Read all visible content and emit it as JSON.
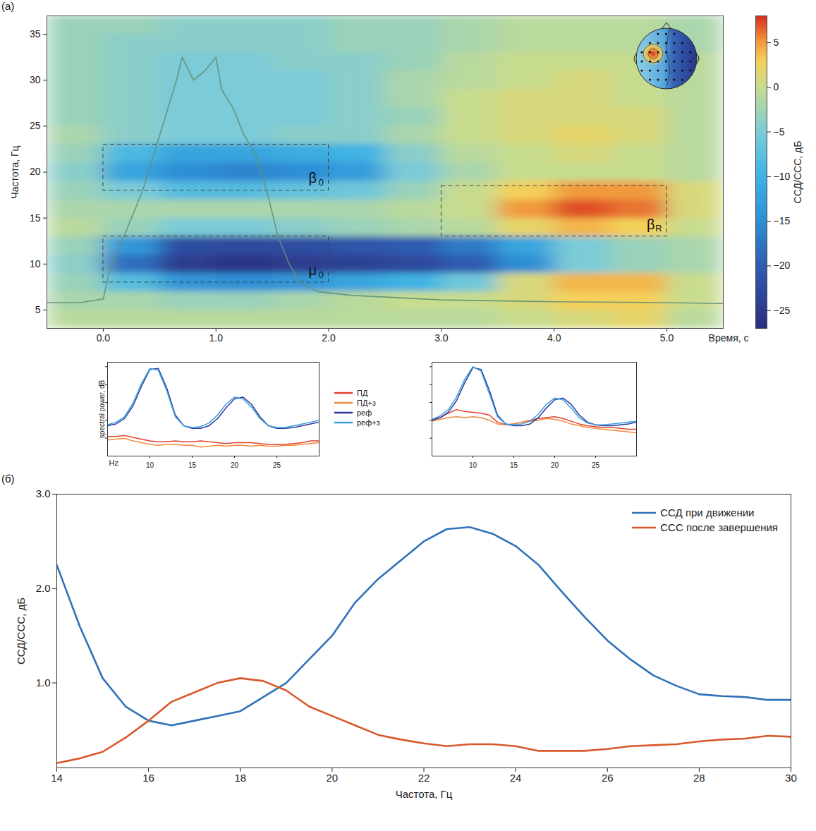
{
  "chart_data": [
    {
      "type": "heatmap",
      "panel": "(а)",
      "x_label": "Время, с",
      "y_label": "Частота, Гц",
      "xlim": [
        -0.5,
        5.5
      ],
      "xticks": [
        0,
        1,
        2,
        3,
        4,
        5
      ],
      "ylim": [
        3,
        37
      ],
      "yticks": [
        5,
        10,
        15,
        20,
        25,
        30,
        35
      ],
      "x_edges": [
        -0.5,
        0,
        0.5,
        1,
        1.5,
        2,
        2.5,
        3,
        3.5,
        4,
        4.5,
        5,
        5.5
      ],
      "y_edges": [
        3,
        5,
        7,
        9,
        11,
        13,
        15,
        17,
        19,
        21,
        23,
        25,
        27,
        29,
        31,
        33,
        35,
        37
      ],
      "cells": [
        [
          -1,
          -1,
          -1,
          -1,
          -1,
          -1,
          -1,
          -1,
          0,
          1,
          2,
          -1
        ],
        [
          -2,
          -2,
          -3,
          -3,
          -2,
          -1,
          0,
          0,
          1,
          3,
          3,
          0
        ],
        [
          -3,
          -8,
          -14,
          -15,
          -14,
          -12,
          -10,
          -6,
          1,
          4,
          4,
          0
        ],
        [
          -4,
          -18,
          -25,
          -26,
          -25,
          -24,
          -23,
          -20,
          -15,
          -5,
          -3,
          -2
        ],
        [
          -3,
          -14,
          -22,
          -23,
          -22,
          -21,
          -20,
          -17,
          -12,
          -5,
          -3,
          -2
        ],
        [
          -1,
          -3,
          -5,
          -5,
          -4,
          -3,
          -2,
          -1,
          2,
          4,
          3,
          0
        ],
        [
          -2,
          -2,
          -2,
          -2,
          -2,
          -2,
          -1,
          0,
          5,
          7,
          6,
          1
        ],
        [
          -3,
          -5,
          -8,
          -8,
          -7,
          -6,
          -3,
          0,
          3,
          5,
          5,
          1
        ],
        [
          -4,
          -12,
          -15,
          -16,
          -15,
          -13,
          -5,
          -2,
          0,
          0,
          0,
          -1
        ],
        [
          -3,
          -9,
          -12,
          -12,
          -11,
          -10,
          -4,
          -1,
          0,
          1,
          0,
          -1
        ],
        [
          -2,
          -4,
          -5,
          -5,
          -4,
          -4,
          -2,
          0,
          1,
          2,
          1,
          -1
        ],
        [
          -3,
          -4,
          -5,
          -5,
          -5,
          -4,
          -3,
          0,
          1,
          1,
          1,
          -1
        ],
        [
          -3,
          -4,
          -5,
          -5,
          -5,
          -4,
          -2,
          0,
          1,
          1,
          0,
          -1
        ],
        [
          -3,
          -4,
          -5,
          -5,
          -5,
          -4,
          -2,
          -1,
          0,
          1,
          0,
          -1
        ],
        [
          -3,
          -4,
          -5,
          -5,
          -4,
          -4,
          -3,
          -1,
          0,
          0,
          0,
          -1
        ],
        [
          -3,
          -4,
          -4,
          -4,
          -4,
          -3,
          -3,
          -2,
          -1,
          -1,
          -1,
          -2
        ],
        [
          -3,
          -3,
          -4,
          -4,
          -4,
          -3,
          -3,
          -2,
          -1,
          -1,
          -1,
          -2
        ]
      ],
      "colorbar": {
        "label": "ССД/ССС, дБ",
        "lim": [
          -27,
          8
        ],
        "ticks": [
          -25,
          -20,
          -15,
          -10,
          -5,
          0,
          5
        ]
      },
      "trace": {
        "color": "#62907a",
        "x": [
          -0.5,
          -0.2,
          0,
          0.05,
          0.15,
          0.25,
          0.35,
          0.45,
          0.55,
          0.65,
          0.7,
          0.8,
          0.9,
          1.0,
          1.05,
          1.15,
          1.25,
          1.35,
          1.45,
          1.55,
          1.65,
          1.75,
          1.9,
          2.2,
          3,
          4,
          5,
          5.5
        ],
        "y": [
          5.8,
          5.8,
          6.2,
          9,
          12,
          15,
          18,
          22,
          26,
          30,
          32.5,
          30,
          31,
          32.5,
          29,
          27,
          24,
          22,
          18,
          13,
          10,
          8,
          7,
          6.6,
          6.1,
          5.9,
          5.8,
          5.7
        ]
      },
      "annotations": [
        {
          "text": "β",
          "subscript": "0",
          "x1": 0,
          "x2": 2,
          "y1": 18,
          "y2": 23
        },
        {
          "text": "μ",
          "subscript": "0",
          "x1": 0,
          "x2": 2,
          "y1": 8,
          "y2": 13
        },
        {
          "text": "β",
          "subscript": "R",
          "x1": 3,
          "x2": 5,
          "y1": 13,
          "y2": 18.5
        }
      ]
    },
    {
      "type": "line",
      "x_label": "Hz",
      "y_label": "spectral power, dB",
      "tick_labels": "x",
      "legend": "right",
      "xlim": [
        5,
        30
      ],
      "xticks": [
        10,
        15,
        20,
        25
      ],
      "ylim": [
        0,
        10.5
      ],
      "yticks": [
        2,
        4,
        6,
        8,
        10
      ],
      "x": [
        5,
        6,
        7,
        8,
        9,
        10,
        11,
        12,
        13,
        14,
        15,
        16,
        17,
        18,
        19,
        20,
        21,
        22,
        23,
        24,
        25,
        26,
        27,
        28,
        29,
        30
      ],
      "series": [
        {
          "name": "ПД",
          "color": "#e0412b",
          "values": [
            2.2,
            2.2,
            2.3,
            2.1,
            1.9,
            1.7,
            1.6,
            1.6,
            1.7,
            1.6,
            1.6,
            1.7,
            1.6,
            1.5,
            1.4,
            1.5,
            1.5,
            1.5,
            1.4,
            1.3,
            1.3,
            1.3,
            1.4,
            1.5,
            1.7,
            1.7
          ]
        },
        {
          "name": "ПД+з",
          "color": "#f08a3c",
          "values": [
            1.8,
            1.9,
            2.0,
            1.7,
            1.5,
            1.3,
            1.2,
            1.3,
            1.3,
            1.2,
            1.2,
            1.0,
            1.1,
            1.2,
            1.1,
            1.2,
            1.2,
            1.1,
            1.2,
            1.1,
            1.1,
            1.2,
            1.2,
            1.3,
            1.4,
            1.5
          ]
        },
        {
          "name": "реф",
          "color": "#2b3a9a",
          "values": [
            3.4,
            3.6,
            4.2,
            5.6,
            7.8,
            9.7,
            9.8,
            7.6,
            4.6,
            3.4,
            3.1,
            3.1,
            3.4,
            4.2,
            5.4,
            6.4,
            6.6,
            5.8,
            4.4,
            3.4,
            3.1,
            3.1,
            3.2,
            3.4,
            3.6,
            3.8
          ]
        },
        {
          "name": "реф+з",
          "color": "#3aa0e0",
          "values": [
            3.5,
            3.8,
            4.4,
            5.9,
            8.1,
            9.8,
            9.6,
            7.3,
            4.4,
            3.4,
            3.2,
            3.3,
            3.7,
            4.6,
            5.8,
            6.6,
            6.4,
            5.5,
            4.2,
            3.4,
            3.2,
            3.2,
            3.4,
            3.6,
            3.8,
            4.0
          ]
        }
      ]
    },
    {
      "type": "line",
      "tick_labels": "x",
      "xlim": [
        5,
        30
      ],
      "xticks": [
        10,
        15,
        20,
        25
      ],
      "ylim": [
        0,
        10.5
      ],
      "yticks": [
        2,
        4,
        6,
        8,
        10
      ],
      "x": [
        5,
        6,
        7,
        8,
        9,
        10,
        11,
        12,
        13,
        14,
        15,
        16,
        17,
        18,
        19,
        20,
        21,
        22,
        23,
        24,
        25,
        26,
        27,
        28,
        29,
        30
      ],
      "series": [
        {
          "name": "ПД",
          "color": "#e0412b",
          "values": [
            4.0,
            4.3,
            4.8,
            5.2,
            5.0,
            4.9,
            4.8,
            4.6,
            3.8,
            3.5,
            3.6,
            3.8,
            4.0,
            4.2,
            4.3,
            4.4,
            4.2,
            3.9,
            3.6,
            3.4,
            3.3,
            3.2,
            3.2,
            3.1,
            3.0,
            3.0
          ]
        },
        {
          "name": "ПД+з",
          "color": "#f08a3c",
          "values": [
            3.9,
            4.1,
            4.3,
            4.4,
            4.3,
            4.4,
            4.3,
            4.0,
            3.6,
            3.5,
            3.6,
            3.8,
            3.9,
            4.0,
            4.2,
            4.1,
            3.9,
            3.6,
            3.4,
            3.2,
            3.1,
            3.0,
            2.9,
            2.8,
            2.7,
            2.6
          ]
        },
        {
          "name": "реф",
          "color": "#2b3a9a",
          "values": [
            4.0,
            4.3,
            4.9,
            6.2,
            8.2,
            9.9,
            9.7,
            7.4,
            4.6,
            3.6,
            3.4,
            3.4,
            3.6,
            4.3,
            5.4,
            6.3,
            6.5,
            5.8,
            4.6,
            3.8,
            3.5,
            3.4,
            3.4,
            3.5,
            3.6,
            3.8
          ]
        },
        {
          "name": "реф+з",
          "color": "#3aa0e0",
          "values": [
            4.1,
            4.5,
            5.2,
            6.6,
            8.6,
            10.0,
            9.5,
            7.0,
            4.4,
            3.6,
            3.5,
            3.6,
            3.9,
            4.7,
            5.8,
            6.5,
            6.3,
            5.4,
            4.3,
            3.7,
            3.5,
            3.5,
            3.6,
            3.7,
            3.8,
            3.9
          ]
        }
      ]
    },
    {
      "type": "line",
      "panel": "(б)",
      "x_label": "Частота, Гц",
      "y_label": "ССД/ССС, дБ",
      "legend": "top-right",
      "xlim": [
        14,
        30
      ],
      "xticks": [
        14,
        16,
        18,
        20,
        22,
        24,
        26,
        28,
        30
      ],
      "ylim": [
        0.1,
        3
      ],
      "yticks": [
        1,
        2,
        3
      ],
      "x": [
        14,
        14.5,
        15,
        15.5,
        16,
        16.5,
        17,
        17.5,
        18,
        18.5,
        19,
        19.5,
        20,
        20.5,
        21,
        21.5,
        22,
        22.5,
        23,
        23.5,
        24,
        24.5,
        25,
        25.5,
        26,
        26.5,
        27,
        27.5,
        28,
        28.5,
        29,
        29.5,
        30
      ],
      "series": [
        {
          "name": "ССД при движении",
          "color": "#2f72b8",
          "values": [
            2.25,
            1.6,
            1.05,
            0.75,
            0.6,
            0.55,
            0.6,
            0.65,
            0.7,
            0.85,
            1.0,
            1.25,
            1.5,
            1.85,
            2.1,
            2.3,
            2.5,
            2.63,
            2.65,
            2.58,
            2.45,
            2.25,
            1.97,
            1.7,
            1.45,
            1.25,
            1.08,
            0.97,
            0.88,
            0.86,
            0.85,
            0.82,
            0.82
          ]
        },
        {
          "name": "ССС после завершения",
          "color": "#d9582b",
          "values": [
            0.15,
            0.2,
            0.27,
            0.42,
            0.6,
            0.8,
            0.9,
            1.0,
            1.05,
            1.02,
            0.92,
            0.75,
            0.65,
            0.55,
            0.45,
            0.4,
            0.36,
            0.33,
            0.35,
            0.35,
            0.33,
            0.28,
            0.28,
            0.28,
            0.3,
            0.33,
            0.34,
            0.35,
            0.38,
            0.4,
            0.41,
            0.44,
            0.43
          ]
        }
      ]
    }
  ]
}
